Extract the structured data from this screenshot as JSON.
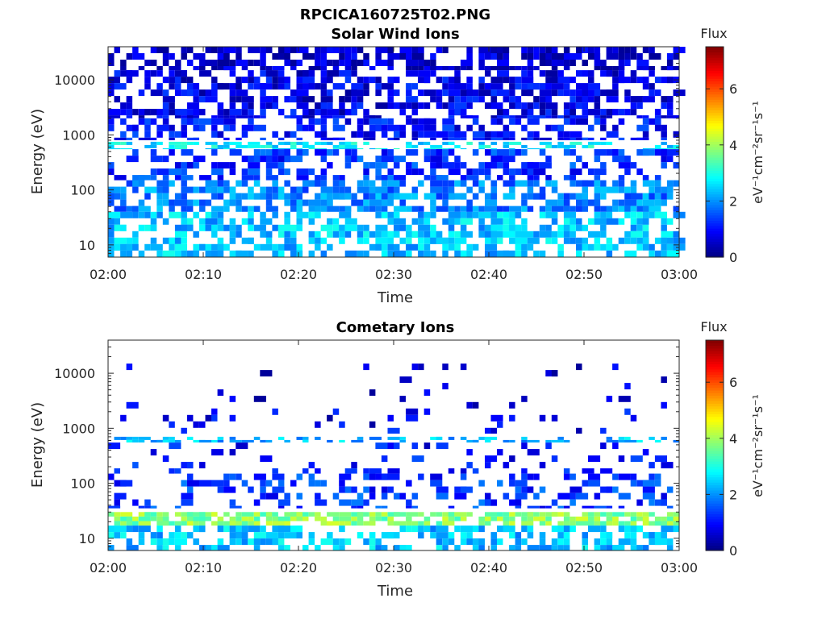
{
  "figure": {
    "filename": "RPCICA160725T02.PNG"
  },
  "colormap": {
    "name": "jet",
    "stops": [
      "#00007f",
      "#0000ff",
      "#007fff",
      "#00ffff",
      "#7fff7f",
      "#ffff00",
      "#ff7f00",
      "#ff0000",
      "#7f0000"
    ]
  },
  "chart_data": [
    {
      "type": "heatmap",
      "title": "Solar Wind Ions",
      "xlabel": "Time",
      "ylabel": "Energy (eV)",
      "x_tick_labels": [
        "02:00",
        "02:10",
        "02:20",
        "02:30",
        "02:40",
        "02:50",
        "03:00"
      ],
      "x_range": [
        "02:00",
        "03:00"
      ],
      "y_scale": "log",
      "y_range": [
        6,
        40000
      ],
      "y_tick_labels": [
        "10",
        "100",
        "1000",
        "10000"
      ],
      "y_ticks": [
        10,
        100,
        1000,
        10000
      ],
      "colorbar": {
        "label": "Flux",
        "units": "eV⁻¹cm⁻²sr⁻¹s⁻¹",
        "range": [
          0,
          7.5
        ],
        "ticks": [
          0,
          2,
          4,
          6
        ]
      },
      "bands": [
        {
          "energy": [
            15000,
            40000
          ],
          "flux_mean": 0.5,
          "occupancy": 0.6
        },
        {
          "energy": [
            2000,
            15000
          ],
          "flux_mean": 0.8,
          "occupancy": 0.55
        },
        {
          "energy": [
            800,
            2000
          ],
          "flux_mean": 1.0,
          "occupancy": 0.5
        },
        {
          "energy": [
            550,
            750
          ],
          "flux_mean": 2.7,
          "occupancy": 0.45
        },
        {
          "energy": [
            150,
            550
          ],
          "flux_mean": 1.3,
          "occupancy": 0.4
        },
        {
          "energy": [
            40,
            150
          ],
          "flux_mean": 1.9,
          "occupancy": 0.6
        },
        {
          "energy": [
            6,
            40
          ],
          "flux_mean": 2.4,
          "occupancy": 0.55
        }
      ]
    },
    {
      "type": "heatmap",
      "title": "Cometary Ions",
      "xlabel": "Time",
      "ylabel": "Energy (eV)",
      "x_tick_labels": [
        "02:00",
        "02:10",
        "02:20",
        "02:30",
        "02:40",
        "02:50",
        "03:00"
      ],
      "x_range": [
        "02:00",
        "03:00"
      ],
      "y_scale": "log",
      "y_range": [
        6,
        40000
      ],
      "y_tick_labels": [
        "10",
        "100",
        "1000",
        "10000"
      ],
      "y_ticks": [
        10,
        100,
        1000,
        10000
      ],
      "colorbar": {
        "label": "Flux",
        "units": "eV⁻¹cm⁻²sr⁻¹s⁻¹",
        "range": [
          0,
          7.5
        ],
        "ticks": [
          0,
          2,
          4,
          6
        ]
      },
      "bands": [
        {
          "energy": [
            3000,
            15000
          ],
          "flux_mean": 0.5,
          "occupancy": 0.05
        },
        {
          "energy": [
            800,
            3000
          ],
          "flux_mean": 0.8,
          "occupancy": 0.07
        },
        {
          "energy": [
            550,
            700
          ],
          "flux_mean": 2.3,
          "occupancy": 0.35
        },
        {
          "energy": [
            150,
            550
          ],
          "flux_mean": 1.0,
          "occupancy": 0.12
        },
        {
          "energy": [
            35,
            150
          ],
          "flux_mean": 1.3,
          "occupancy": 0.3
        },
        {
          "energy": [
            17,
            30
          ],
          "flux_mean": 3.8,
          "occupancy": 0.7
        },
        {
          "energy": [
            6,
            17
          ],
          "flux_mean": 2.4,
          "occupancy": 0.45
        }
      ]
    }
  ]
}
